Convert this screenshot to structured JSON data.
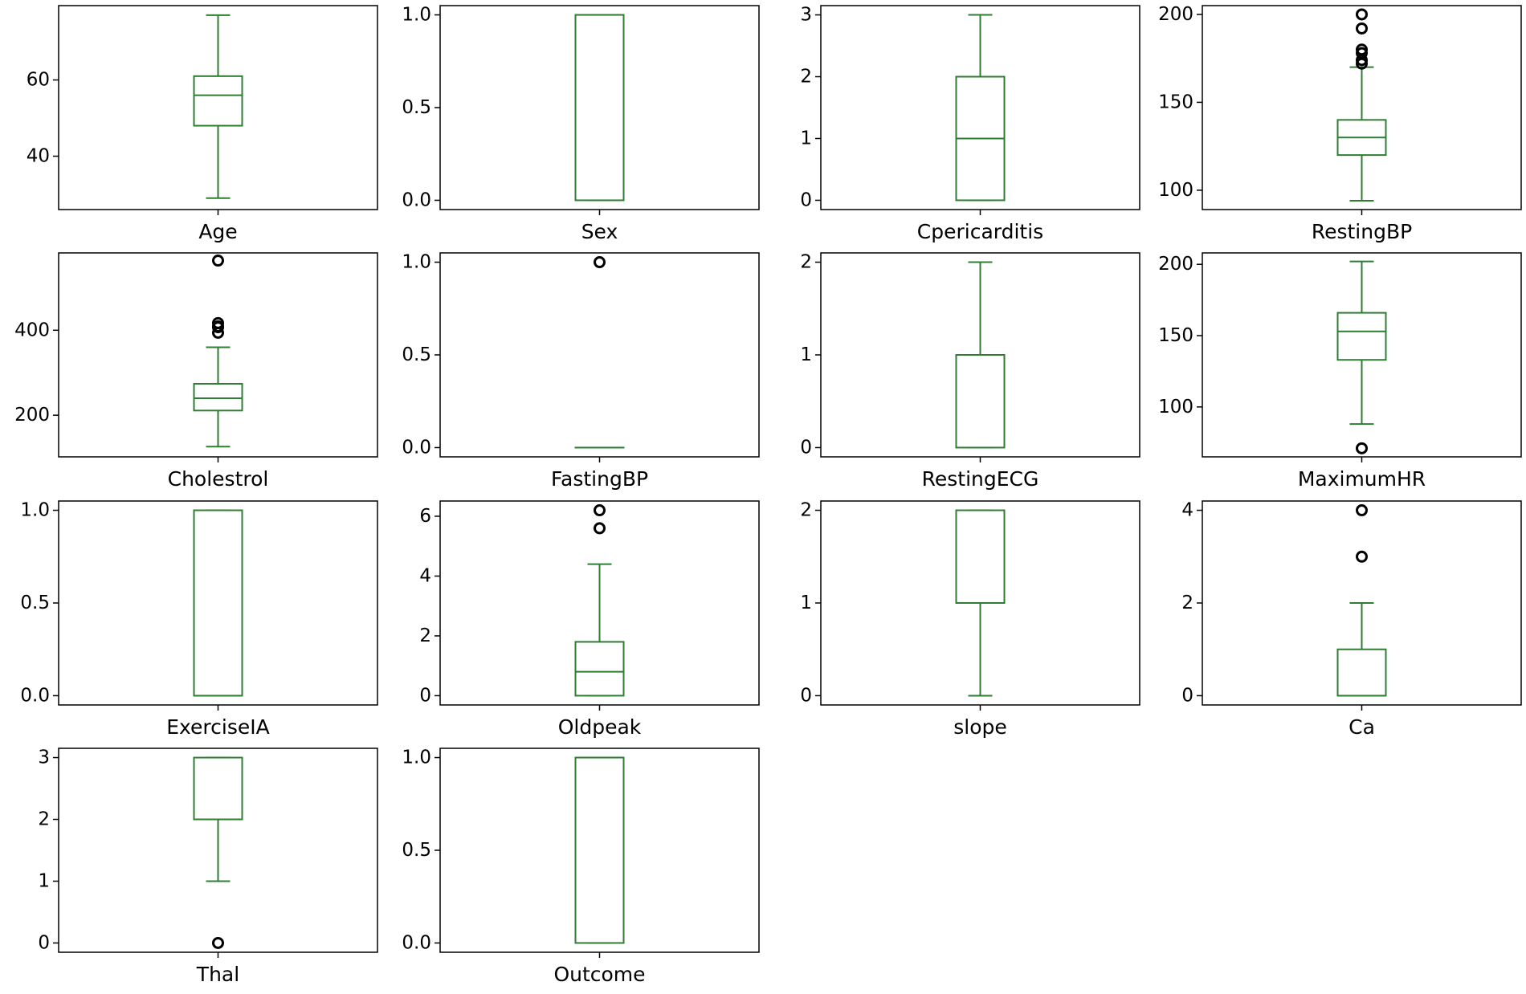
{
  "chart_data": [
    {
      "type": "box",
      "xlabel": "Age",
      "ylim": [
        26,
        79.5
      ],
      "yticks": [
        40,
        60
      ],
      "ytick_labels": [
        "40",
        "60"
      ],
      "whisker_low": 29,
      "q1": 48,
      "median": 56,
      "q3": 61,
      "whisker_high": 77,
      "outliers": []
    },
    {
      "type": "box",
      "xlabel": "Sex",
      "ylim": [
        -0.05,
        1.05
      ],
      "yticks": [
        0,
        0.5,
        1
      ],
      "ytick_labels": [
        "0.0",
        "0.5",
        "1.0"
      ],
      "whisker_low": 0,
      "q1": 0,
      "median": 1,
      "q3": 1,
      "whisker_high": 1,
      "outliers": []
    },
    {
      "type": "box",
      "xlabel": "Cpericarditis",
      "ylim": [
        -0.15,
        3.15
      ],
      "yticks": [
        0,
        1,
        2,
        3
      ],
      "ytick_labels": [
        "0",
        "1",
        "2",
        "3"
      ],
      "whisker_low": 0,
      "q1": 0,
      "median": 1,
      "q3": 2,
      "whisker_high": 3,
      "outliers": []
    },
    {
      "type": "box",
      "xlabel": "RestingBP",
      "ylim": [
        89,
        205
      ],
      "yticks": [
        100,
        150,
        200
      ],
      "ytick_labels": [
        "100",
        "150",
        "200"
      ],
      "whisker_low": 94,
      "q1": 120,
      "median": 130,
      "q3": 140,
      "whisker_high": 170,
      "outliers": [
        172,
        174,
        178,
        180,
        192,
        200
      ]
    },
    {
      "type": "box",
      "xlabel": "Cholestrol",
      "ylim": [
        102,
        582
      ],
      "yticks": [
        200,
        400
      ],
      "ytick_labels": [
        "200",
        "400"
      ],
      "whisker_low": 126,
      "q1": 211,
      "median": 240,
      "q3": 274,
      "whisker_high": 360,
      "outliers": [
        394,
        407,
        409,
        417,
        564
      ]
    },
    {
      "type": "box",
      "xlabel": "FastingBP",
      "ylim": [
        -0.05,
        1.05
      ],
      "yticks": [
        0,
        0.5,
        1
      ],
      "ytick_labels": [
        "0.0",
        "0.5",
        "1.0"
      ],
      "whisker_low": 0,
      "q1": 0,
      "median": 0,
      "q3": 0,
      "whisker_high": 0,
      "outliers": [
        1
      ]
    },
    {
      "type": "box",
      "xlabel": "RestingECG",
      "ylim": [
        -0.1,
        2.1
      ],
      "yticks": [
        0,
        1,
        2
      ],
      "ytick_labels": [
        "0",
        "1",
        "2"
      ],
      "whisker_low": 0,
      "q1": 0,
      "median": 1,
      "q3": 1,
      "whisker_high": 2,
      "outliers": []
    },
    {
      "type": "box",
      "xlabel": "MaximumHR",
      "ylim": [
        65,
        208
      ],
      "yticks": [
        100,
        150,
        200
      ],
      "ytick_labels": [
        "100",
        "150",
        "200"
      ],
      "whisker_low": 88,
      "q1": 133,
      "median": 153,
      "q3": 166,
      "whisker_high": 202,
      "outliers": [
        71
      ]
    },
    {
      "type": "box",
      "xlabel": "ExerciseIA",
      "ylim": [
        -0.05,
        1.05
      ],
      "yticks": [
        0,
        0.5,
        1
      ],
      "ytick_labels": [
        "0.0",
        "0.5",
        "1.0"
      ],
      "whisker_low": 0,
      "q1": 0,
      "median": 0,
      "q3": 1,
      "whisker_high": 1,
      "outliers": []
    },
    {
      "type": "box",
      "xlabel": "Oldpeak",
      "ylim": [
        -0.31,
        6.51
      ],
      "yticks": [
        0,
        2,
        4,
        6
      ],
      "ytick_labels": [
        "0",
        "2",
        "4",
        "6"
      ],
      "whisker_low": 0,
      "q1": 0,
      "median": 0.8,
      "q3": 1.8,
      "whisker_high": 4.4,
      "outliers": [
        5.6,
        6.2
      ]
    },
    {
      "type": "box",
      "xlabel": "slope",
      "ylim": [
        -0.1,
        2.1
      ],
      "yticks": [
        0,
        1,
        2
      ],
      "ytick_labels": [
        "0",
        "1",
        "2"
      ],
      "whisker_low": 0,
      "q1": 1,
      "median": 1,
      "q3": 2,
      "whisker_high": 2,
      "outliers": []
    },
    {
      "type": "box",
      "xlabel": "Ca",
      "ylim": [
        -0.2,
        4.2
      ],
      "yticks": [
        0,
        2,
        4
      ],
      "ytick_labels": [
        "0",
        "2",
        "4"
      ],
      "whisker_low": 0,
      "q1": 0,
      "median": 0,
      "q3": 1,
      "whisker_high": 2,
      "outliers": [
        3,
        4
      ]
    },
    {
      "type": "box",
      "xlabel": "Thal",
      "ylim": [
        -0.15,
        3.15
      ],
      "yticks": [
        0,
        1,
        2,
        3
      ],
      "ytick_labels": [
        "0",
        "1",
        "2",
        "3"
      ],
      "whisker_low": 1,
      "q1": 2,
      "median": 2,
      "q3": 3,
      "whisker_high": 3,
      "outliers": [
        0
      ]
    },
    {
      "type": "box",
      "xlabel": "Outcome",
      "ylim": [
        -0.05,
        1.05
      ],
      "yticks": [
        0,
        0.5,
        1
      ],
      "ytick_labels": [
        "0.0",
        "0.5",
        "1.0"
      ],
      "whisker_low": 0,
      "q1": 0,
      "median": 1,
      "q3": 1,
      "whisker_high": 1,
      "outliers": []
    }
  ],
  "colors": {
    "box": "#2e7d32",
    "axes": "#000000",
    "outlier": "#000000",
    "background": "#ffffff"
  }
}
